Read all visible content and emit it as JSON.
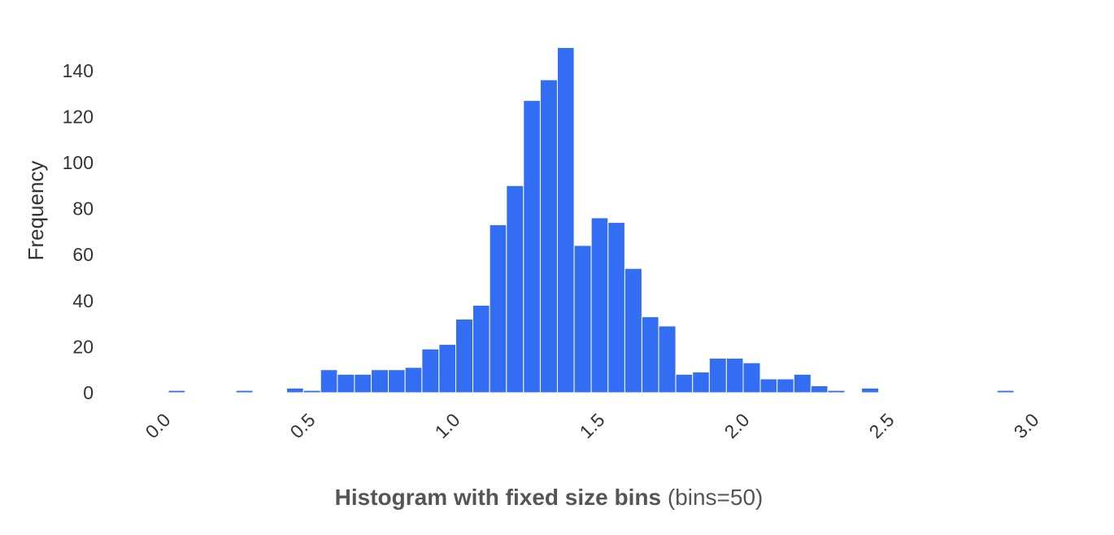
{
  "chart_data": {
    "type": "bar",
    "title": "Histogram with fixed size bins",
    "subtitle": "(bins=50)",
    "xlabel": "",
    "ylabel": "Frequency",
    "xlim": [
      -0.2,
      3.0
    ],
    "ylim": [
      0,
      150
    ],
    "bar_color": "#336DF4",
    "bar_edge_color": "#ffffff",
    "grid": false,
    "x_ticks": [
      {
        "value": 0.0,
        "label": "0.0"
      },
      {
        "value": 0.5,
        "label": "0.5"
      },
      {
        "value": 1.0,
        "label": "1.0"
      },
      {
        "value": 1.5,
        "label": "1.5"
      },
      {
        "value": 2.0,
        "label": "2.0"
      },
      {
        "value": 2.5,
        "label": "2.5"
      },
      {
        "value": 3.0,
        "label": "3.0"
      }
    ],
    "y_ticks": [
      {
        "value": 0,
        "label": "0"
      },
      {
        "value": 20,
        "label": "20"
      },
      {
        "value": 40,
        "label": "40"
      },
      {
        "value": 60,
        "label": "60"
      },
      {
        "value": 80,
        "label": "80"
      },
      {
        "value": 100,
        "label": "100"
      },
      {
        "value": 120,
        "label": "120"
      },
      {
        "value": 140,
        "label": "140"
      }
    ],
    "bins": [
      {
        "x0": 0.0,
        "x1": 0.058,
        "value": 1
      },
      {
        "x0": 0.234,
        "x1": 0.292,
        "value": 1
      },
      {
        "x0": 0.409,
        "x1": 0.467,
        "value": 2
      },
      {
        "x0": 0.467,
        "x1": 0.526,
        "value": 1
      },
      {
        "x0": 0.526,
        "x1": 0.584,
        "value": 10
      },
      {
        "x0": 0.584,
        "x1": 0.643,
        "value": 8
      },
      {
        "x0": 0.643,
        "x1": 0.701,
        "value": 8
      },
      {
        "x0": 0.701,
        "x1": 0.76,
        "value": 10
      },
      {
        "x0": 0.76,
        "x1": 0.818,
        "value": 10
      },
      {
        "x0": 0.818,
        "x1": 0.876,
        "value": 11
      },
      {
        "x0": 0.876,
        "x1": 0.935,
        "value": 19
      },
      {
        "x0": 0.935,
        "x1": 0.993,
        "value": 21
      },
      {
        "x0": 0.993,
        "x1": 1.052,
        "value": 32
      },
      {
        "x0": 1.052,
        "x1": 1.11,
        "value": 38
      },
      {
        "x0": 1.11,
        "x1": 1.168,
        "value": 73
      },
      {
        "x0": 1.168,
        "x1": 1.227,
        "value": 90
      },
      {
        "x0": 1.227,
        "x1": 1.285,
        "value": 127
      },
      {
        "x0": 1.285,
        "x1": 1.344,
        "value": 136
      },
      {
        "x0": 1.344,
        "x1": 1.402,
        "value": 150
      },
      {
        "x0": 1.402,
        "x1": 1.461,
        "value": 64
      },
      {
        "x0": 1.461,
        "x1": 1.519,
        "value": 76
      },
      {
        "x0": 1.519,
        "x1": 1.577,
        "value": 74
      },
      {
        "x0": 1.577,
        "x1": 1.636,
        "value": 54
      },
      {
        "x0": 1.636,
        "x1": 1.694,
        "value": 33
      },
      {
        "x0": 1.694,
        "x1": 1.753,
        "value": 29
      },
      {
        "x0": 1.753,
        "x1": 1.811,
        "value": 8
      },
      {
        "x0": 1.811,
        "x1": 1.869,
        "value": 9
      },
      {
        "x0": 1.869,
        "x1": 1.928,
        "value": 15
      },
      {
        "x0": 1.928,
        "x1": 1.986,
        "value": 15
      },
      {
        "x0": 1.986,
        "x1": 2.045,
        "value": 13
      },
      {
        "x0": 2.045,
        "x1": 2.103,
        "value": 6
      },
      {
        "x0": 2.103,
        "x1": 2.161,
        "value": 6
      },
      {
        "x0": 2.161,
        "x1": 2.22,
        "value": 8
      },
      {
        "x0": 2.22,
        "x1": 2.278,
        "value": 3
      },
      {
        "x0": 2.278,
        "x1": 2.337,
        "value": 1
      },
      {
        "x0": 2.395,
        "x1": 2.454,
        "value": 2
      },
      {
        "x0": 2.863,
        "x1": 2.921,
        "value": 1
      }
    ]
  }
}
